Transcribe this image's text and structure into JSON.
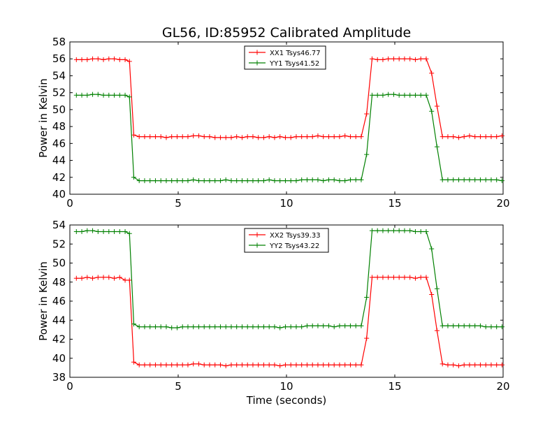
{
  "figure": {
    "title": "GL56, ID:85952 Calibrated Amplitude",
    "xlabel": "Time (seconds)"
  },
  "chart_data": [
    {
      "type": "line",
      "title": "GL56, ID:85952 Calibrated Amplitude",
      "xlabel": "",
      "ylabel": "Power in Kelvin",
      "xlim": [
        0,
        20
      ],
      "ylim": [
        40,
        58
      ],
      "xticks": [
        0,
        5,
        10,
        15,
        20
      ],
      "yticks": [
        40,
        42,
        44,
        46,
        48,
        50,
        52,
        54,
        56,
        58
      ],
      "legend_position": "top-center",
      "grid": false,
      "x": [
        0.3,
        0.55,
        0.8,
        1.05,
        1.3,
        1.55,
        1.8,
        2.05,
        2.3,
        2.55,
        2.75,
        2.95,
        3.2,
        3.45,
        3.7,
        3.95,
        4.2,
        4.45,
        4.7,
        4.95,
        5.2,
        5.45,
        5.7,
        5.95,
        6.2,
        6.45,
        6.7,
        6.95,
        7.2,
        7.45,
        7.7,
        7.95,
        8.2,
        8.45,
        8.7,
        8.95,
        9.2,
        9.45,
        9.7,
        9.95,
        10.2,
        10.45,
        10.7,
        10.95,
        11.2,
        11.45,
        11.7,
        11.95,
        12.2,
        12.45,
        12.7,
        12.95,
        13.2,
        13.45,
        13.7,
        13.95,
        14.2,
        14.45,
        14.7,
        14.95,
        15.2,
        15.45,
        15.7,
        15.95,
        16.2,
        16.45,
        16.7,
        16.95,
        17.2,
        17.45,
        17.7,
        17.95,
        18.2,
        18.45,
        18.7,
        18.95,
        19.2,
        19.45,
        19.7,
        19.95
      ],
      "series": [
        {
          "name": "XX1 Tsys46.77",
          "color": "#ff0000",
          "values": [
            55.9,
            55.9,
            55.9,
            56.0,
            56.0,
            55.9,
            56.0,
            56.0,
            55.9,
            55.9,
            55.7,
            47.0,
            46.8,
            46.8,
            46.8,
            46.8,
            46.8,
            46.7,
            46.8,
            46.8,
            46.8,
            46.8,
            46.9,
            46.9,
            46.8,
            46.8,
            46.7,
            46.7,
            46.7,
            46.7,
            46.8,
            46.7,
            46.8,
            46.8,
            46.7,
            46.7,
            46.8,
            46.7,
            46.8,
            46.7,
            46.7,
            46.8,
            46.8,
            46.8,
            46.8,
            46.9,
            46.8,
            46.8,
            46.8,
            46.8,
            46.9,
            46.8,
            46.8,
            46.8,
            49.5,
            56.0,
            55.9,
            55.9,
            56.0,
            56.0,
            56.0,
            56.0,
            56.0,
            55.9,
            56.0,
            56.0,
            54.3,
            50.4,
            46.8,
            46.8,
            46.8,
            46.7,
            46.8,
            46.9,
            46.8,
            46.8,
            46.8,
            46.8,
            46.8,
            46.9
          ]
        },
        {
          "name": "YY1 Tsys41.52",
          "color": "#008000",
          "values": [
            51.7,
            51.7,
            51.7,
            51.8,
            51.8,
            51.7,
            51.7,
            51.7,
            51.7,
            51.7,
            51.5,
            42.0,
            41.6,
            41.6,
            41.6,
            41.6,
            41.6,
            41.6,
            41.6,
            41.6,
            41.6,
            41.6,
            41.7,
            41.6,
            41.6,
            41.6,
            41.6,
            41.6,
            41.7,
            41.6,
            41.6,
            41.6,
            41.6,
            41.6,
            41.6,
            41.6,
            41.7,
            41.6,
            41.6,
            41.6,
            41.6,
            41.6,
            41.7,
            41.7,
            41.7,
            41.7,
            41.6,
            41.7,
            41.7,
            41.6,
            41.6,
            41.7,
            41.7,
            41.7,
            44.7,
            51.7,
            51.7,
            51.7,
            51.8,
            51.8,
            51.7,
            51.7,
            51.7,
            51.7,
            51.7,
            51.7,
            49.8,
            45.6,
            41.7,
            41.7,
            41.7,
            41.7,
            41.7,
            41.7,
            41.7,
            41.7,
            41.7,
            41.7,
            41.7,
            41.6
          ]
        }
      ]
    },
    {
      "type": "line",
      "title": "",
      "xlabel": "Time (seconds)",
      "ylabel": "Power in Kelvin",
      "xlim": [
        0,
        20
      ],
      "ylim": [
        38,
        54
      ],
      "xticks": [
        0,
        5,
        10,
        15,
        20
      ],
      "yticks": [
        38,
        40,
        42,
        44,
        46,
        48,
        50,
        52,
        54
      ],
      "legend_position": "top-center",
      "grid": false,
      "x": [
        0.3,
        0.55,
        0.8,
        1.05,
        1.3,
        1.55,
        1.8,
        2.05,
        2.3,
        2.55,
        2.75,
        2.95,
        3.2,
        3.45,
        3.7,
        3.95,
        4.2,
        4.45,
        4.7,
        4.95,
        5.2,
        5.45,
        5.7,
        5.95,
        6.2,
        6.45,
        6.7,
        6.95,
        7.2,
        7.45,
        7.7,
        7.95,
        8.2,
        8.45,
        8.7,
        8.95,
        9.2,
        9.45,
        9.7,
        9.95,
        10.2,
        10.45,
        10.7,
        10.95,
        11.2,
        11.45,
        11.7,
        11.95,
        12.2,
        12.45,
        12.7,
        12.95,
        13.2,
        13.45,
        13.7,
        13.95,
        14.2,
        14.45,
        14.7,
        14.95,
        15.2,
        15.45,
        15.7,
        15.95,
        16.2,
        16.45,
        16.7,
        16.95,
        17.2,
        17.45,
        17.7,
        17.95,
        18.2,
        18.45,
        18.7,
        18.95,
        19.2,
        19.45,
        19.7,
        19.95
      ],
      "series": [
        {
          "name": "XX2 Tsys39.33",
          "color": "#ff0000",
          "values": [
            48.4,
            48.4,
            48.5,
            48.4,
            48.5,
            48.5,
            48.5,
            48.4,
            48.5,
            48.2,
            48.2,
            39.6,
            39.3,
            39.3,
            39.3,
            39.3,
            39.3,
            39.3,
            39.3,
            39.3,
            39.3,
            39.3,
            39.4,
            39.4,
            39.3,
            39.3,
            39.3,
            39.3,
            39.2,
            39.3,
            39.3,
            39.3,
            39.3,
            39.3,
            39.3,
            39.3,
            39.3,
            39.3,
            39.2,
            39.3,
            39.3,
            39.3,
            39.3,
            39.3,
            39.3,
            39.3,
            39.3,
            39.3,
            39.3,
            39.3,
            39.3,
            39.3,
            39.3,
            39.3,
            42.1,
            48.5,
            48.5,
            48.5,
            48.5,
            48.5,
            48.5,
            48.5,
            48.5,
            48.4,
            48.5,
            48.5,
            46.7,
            42.9,
            39.4,
            39.3,
            39.3,
            39.2,
            39.3,
            39.3,
            39.3,
            39.3,
            39.3,
            39.3,
            39.3,
            39.3
          ]
        },
        {
          "name": "YY2 Tsys43.22",
          "color": "#008000",
          "values": [
            53.3,
            53.3,
            53.4,
            53.4,
            53.3,
            53.3,
            53.3,
            53.3,
            53.3,
            53.3,
            53.1,
            43.6,
            43.3,
            43.3,
            43.3,
            43.3,
            43.3,
            43.3,
            43.2,
            43.2,
            43.3,
            43.3,
            43.3,
            43.3,
            43.3,
            43.3,
            43.3,
            43.3,
            43.3,
            43.3,
            43.3,
            43.3,
            43.3,
            43.3,
            43.3,
            43.3,
            43.3,
            43.3,
            43.2,
            43.3,
            43.3,
            43.3,
            43.3,
            43.4,
            43.4,
            43.4,
            43.4,
            43.4,
            43.3,
            43.4,
            43.4,
            43.4,
            43.4,
            43.4,
            46.4,
            53.4,
            53.4,
            53.4,
            53.4,
            53.4,
            53.4,
            53.4,
            53.4,
            53.3,
            53.3,
            53.3,
            51.5,
            47.3,
            43.4,
            43.4,
            43.4,
            43.4,
            43.4,
            43.4,
            43.4,
            43.4,
            43.3,
            43.3,
            43.3,
            43.3
          ]
        }
      ]
    }
  ]
}
